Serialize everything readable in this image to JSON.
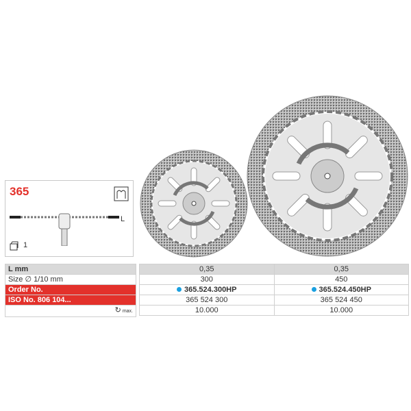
{
  "product": {
    "code": "365",
    "length_label": "L",
    "pack_qty": "1"
  },
  "table": {
    "row_labels": {
      "l_mm": "L mm",
      "size": "Size ∅ 1/10 mm",
      "order_no": "Order No.",
      "iso_no": "ISO No. 806 104...",
      "rpm_max": "max."
    },
    "columns": [
      {
        "l_mm": "0,35",
        "size": "300",
        "order_no": "365.524.300HP",
        "iso_no": "365 524 300",
        "rpm": "10.000"
      },
      {
        "l_mm": "0,35",
        "size": "450",
        "order_no": "365.524.450HP",
        "iso_no": "365 524 450",
        "rpm": "10.000"
      }
    ]
  },
  "colors": {
    "accent_red": "#e3312b",
    "availability_dot": "#1aa0e0"
  },
  "icons": [
    "disc-profile-diagram",
    "dental-indication-icon",
    "package-icon",
    "rotation-icon",
    "diamond-disc-image"
  ]
}
